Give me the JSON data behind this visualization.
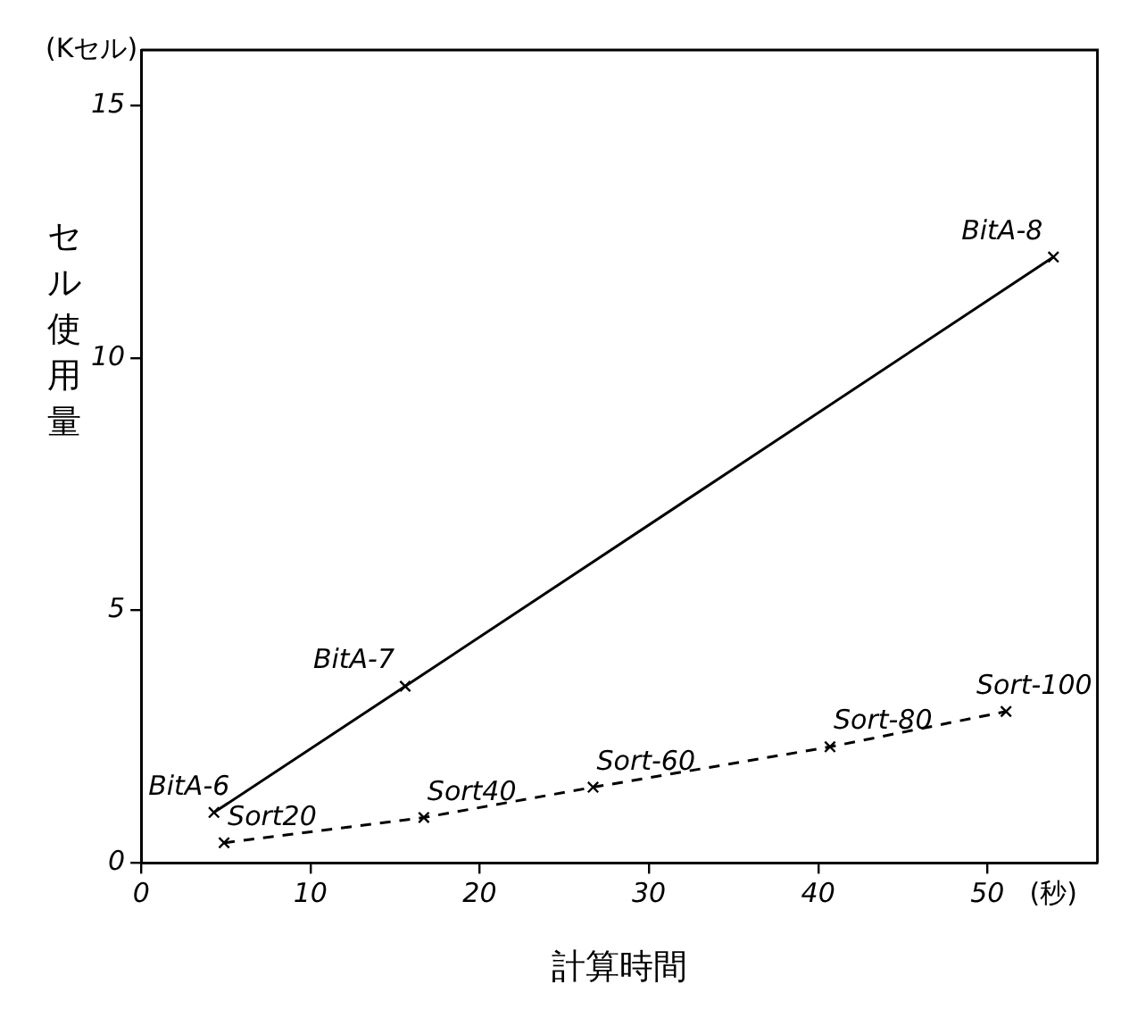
{
  "chart_data": {
    "type": "line",
    "xlabel": "計算時間",
    "ylabel": "セル使用量",
    "annotations": [
      "(Kセル)",
      "(秒)",
      {
        "text": "BitA-6",
        "x": 4.3,
        "y": 1.0
      },
      {
        "text": "BitA-7",
        "x": 15.6,
        "y": 3.5
      },
      {
        "text": "BitA-8",
        "x": 53.9,
        "y": 12.0
      },
      {
        "text": "Sort20",
        "x": 4.9,
        "y": 0.4
      },
      {
        "text": "Sort40",
        "x": 16.7,
        "y": 0.9
      },
      {
        "text": "Sort-60",
        "x": 26.7,
        "y": 1.5
      },
      {
        "text": "Sort-80",
        "x": 40.7,
        "y": 2.3
      },
      {
        "text": "Sort-100",
        "x": 51.1,
        "y": 3.0
      }
    ],
    "series": [
      {
        "color": "#000000",
        "line_style": "solid",
        "x": [
          4.3,
          15.6,
          53.9
        ],
        "values": [
          1.0,
          3.5,
          12.0
        ]
      },
      {
        "color": "#000000",
        "line_style": "dashed",
        "x": [
          4.9,
          16.7,
          26.7,
          40.7,
          51.1
        ],
        "values": [
          0.4,
          0.9,
          1.5,
          2.3,
          3.0
        ]
      }
    ],
    "xlim": [
      0,
      56.5
    ],
    "ylim": [
      0,
      16.1
    ],
    "xticks": [
      0,
      10,
      20,
      30,
      40,
      50
    ],
    "yticks": [
      0,
      5,
      10,
      15
    ],
    "marker": "cross",
    "grid": false,
    "legend": false
  }
}
